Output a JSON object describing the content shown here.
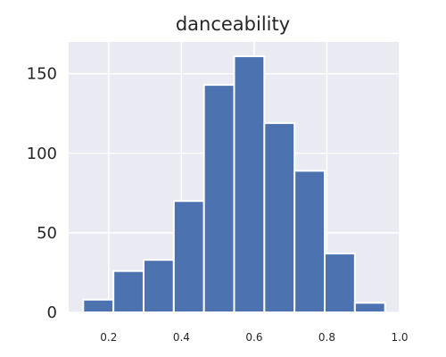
{
  "chart_data": {
    "type": "bar",
    "title": "danceability",
    "bins": [
      {
        "start": 0.13,
        "end": 0.213,
        "count": 8
      },
      {
        "start": 0.213,
        "end": 0.296,
        "count": 26
      },
      {
        "start": 0.296,
        "end": 0.379,
        "count": 33
      },
      {
        "start": 0.379,
        "end": 0.462,
        "count": 70
      },
      {
        "start": 0.462,
        "end": 0.545,
        "count": 143
      },
      {
        "start": 0.545,
        "end": 0.628,
        "count": 161
      },
      {
        "start": 0.628,
        "end": 0.711,
        "count": 119
      },
      {
        "start": 0.711,
        "end": 0.794,
        "count": 89
      },
      {
        "start": 0.794,
        "end": 0.877,
        "count": 37
      },
      {
        "start": 0.877,
        "end": 0.96,
        "count": 6
      }
    ],
    "xticks": [
      "0.2",
      "0.4",
      "0.6",
      "0.8",
      "1.0"
    ],
    "yticks": [
      "0",
      "50",
      "100",
      "150"
    ],
    "xlim": [
      0.09,
      1.0
    ],
    "ylim": [
      0,
      170
    ],
    "grid": true,
    "colors": {
      "bar": "#4c72b0",
      "background": "#eaeaf2",
      "grid": "#ffffff"
    }
  }
}
